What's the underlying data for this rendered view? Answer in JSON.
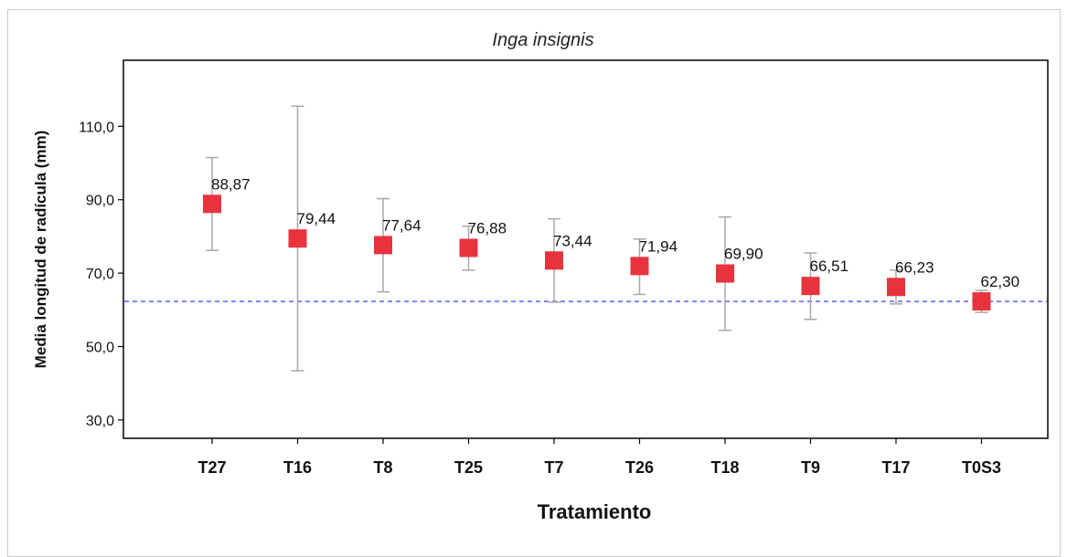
{
  "chart_data": {
    "type": "scatter",
    "title": "Inga insignis",
    "xlabel": "Tratamiento",
    "ylabel": "Media longitud de radícula (mm)",
    "categories": [
      "T27",
      "T16",
      "T8",
      "T25",
      "T7",
      "T26",
      "T18",
      "T9",
      "T17",
      "T0S3"
    ],
    "means": [
      88.87,
      79.44,
      77.64,
      76.88,
      73.44,
      71.94,
      69.9,
      66.51,
      66.23,
      62.3
    ],
    "data_labels": [
      "88,87",
      "79,44",
      "77,64",
      "76,88",
      "73,44",
      "71,94",
      "69,90",
      "66,51",
      "66,23",
      "62,30"
    ],
    "error_upper": [
      101.5,
      115.5,
      90.3,
      82.8,
      84.8,
      79.3,
      85.3,
      75.5,
      70.8,
      65.3
    ],
    "error_lower": [
      76.2,
      43.4,
      64.9,
      70.8,
      62.1,
      64.2,
      54.4,
      57.4,
      61.6,
      59.3
    ],
    "reference_line": 62.3,
    "yticks": [
      30,
      50,
      70,
      90,
      110
    ],
    "ytick_labels": [
      "30,0",
      "50,0",
      "70,0",
      "90,0",
      "110,0"
    ],
    "ylim": [
      25,
      128
    ],
    "grid": false,
    "colors": {
      "marker": "#e8333f",
      "errorbar": "#a8a8a8",
      "reference": "#8080ff",
      "axis": "#000000"
    }
  }
}
